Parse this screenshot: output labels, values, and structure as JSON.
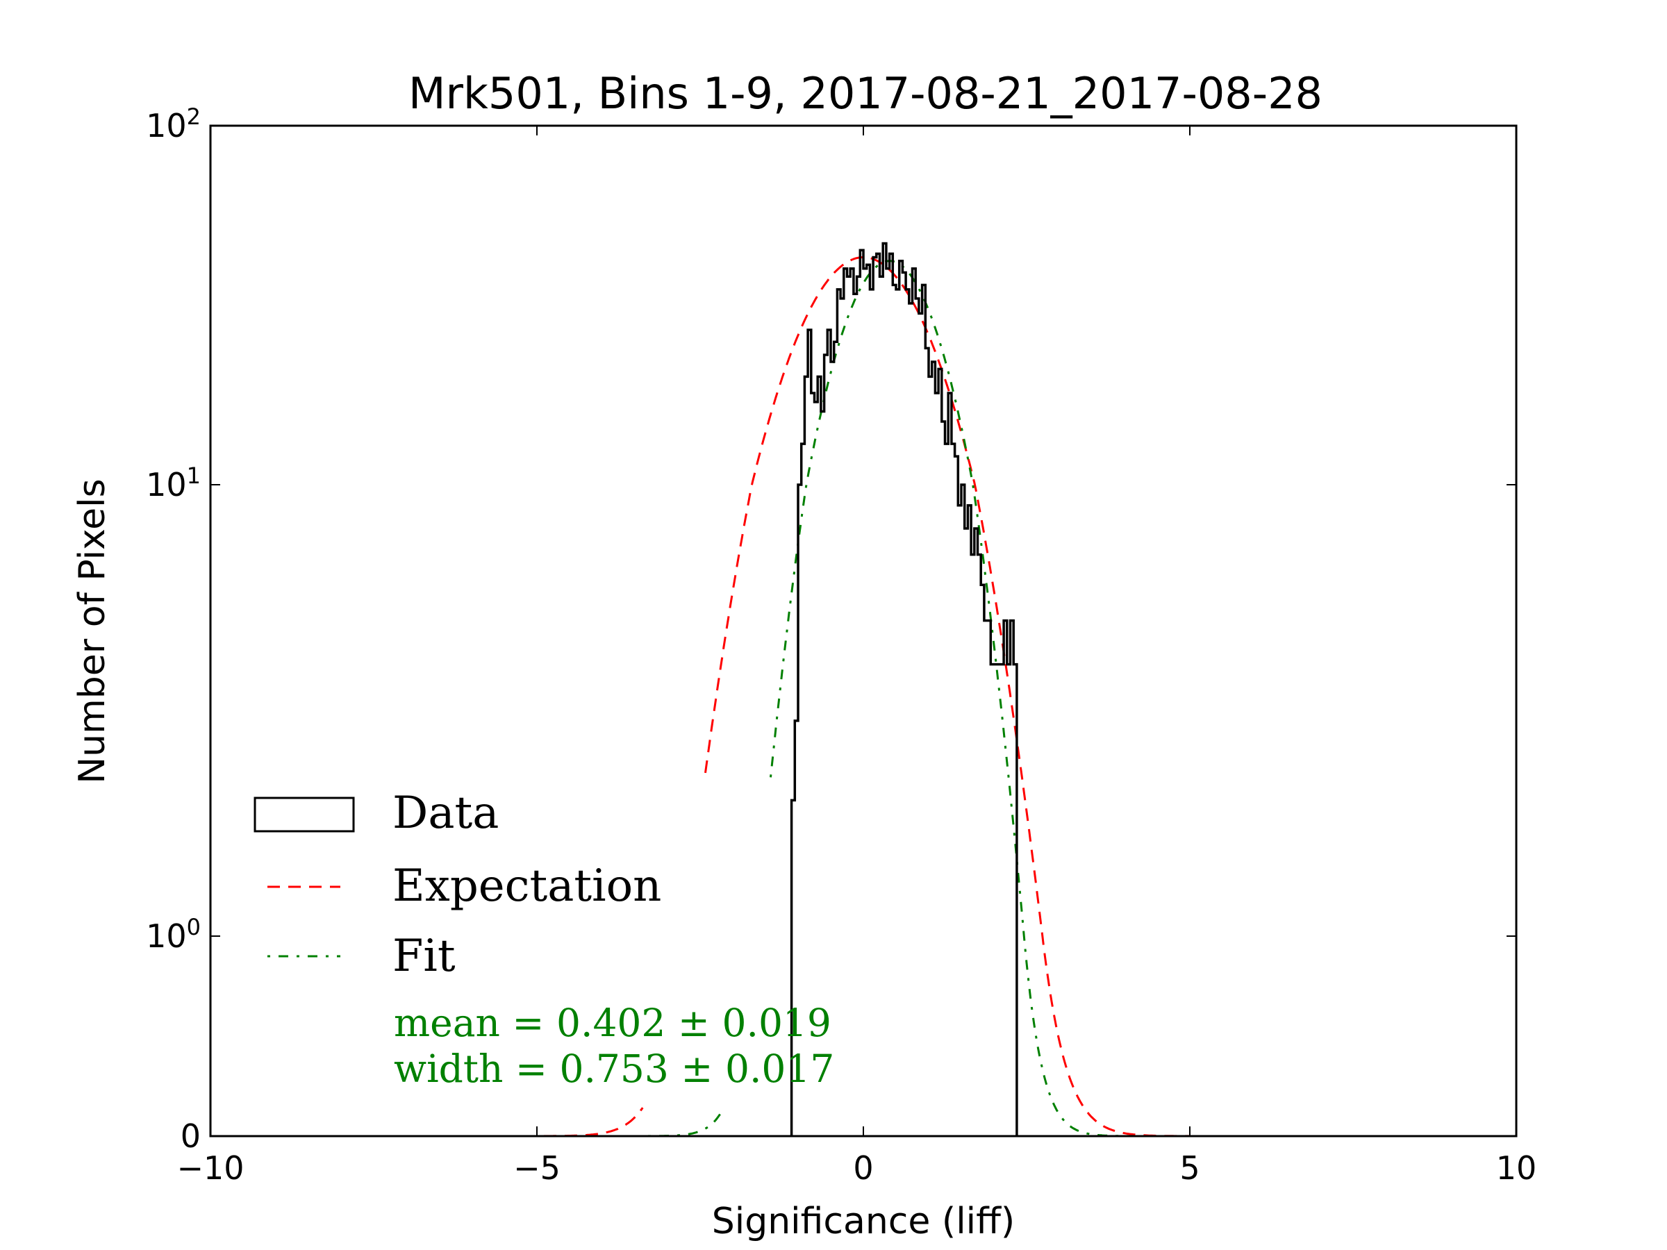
{
  "chart_data": {
    "type": "histogram",
    "title": "Mrk501, Bins 1-9, 2017-08-21_2017-08-28",
    "xlabel": "Significance (liff)",
    "ylabel": "Number of Pixels",
    "xlim": [
      -10,
      10
    ],
    "ylim": [
      0,
      100
    ],
    "yscale": "symlog",
    "xticks": [
      -10,
      -5,
      0,
      5,
      10
    ],
    "xtick_labels": [
      "−10",
      "−5",
      "0",
      "5",
      "10"
    ],
    "yticks": [
      0,
      1,
      10,
      100
    ],
    "ytick_labels": [
      {
        "base": "0",
        "exp": ""
      },
      {
        "base": "10",
        "exp": "0"
      },
      {
        "base": "10",
        "exp": "1"
      },
      {
        "base": "10",
        "exp": "2"
      }
    ],
    "histogram": {
      "name": "Data",
      "color": "#000000",
      "bin_start": -1.1,
      "bin_width": 0.05,
      "counts": [
        2,
        3,
        10,
        13,
        20,
        27,
        18,
        17,
        20,
        16,
        23,
        27,
        22,
        25,
        35,
        33,
        40,
        38,
        40,
        34,
        38,
        45,
        40,
        41,
        35,
        43,
        44,
        38,
        47,
        40,
        44,
        36,
        35,
        42,
        39,
        35,
        32,
        40,
        33,
        30,
        36,
        24,
        20,
        22,
        18,
        21,
        15,
        13,
        18,
        13,
        12,
        9,
        10,
        8,
        9,
        7,
        8,
        7,
        6,
        5,
        5,
        4,
        4,
        4,
        4,
        5,
        4,
        5,
        4
      ]
    },
    "curves": [
      {
        "name": "Expectation",
        "color": "#ff0000",
        "style": "dashed",
        "mean": 0.0,
        "width": 1.0,
        "amplitude": 43
      },
      {
        "name": "Fit",
        "color": "#008000",
        "style": "dashdot",
        "mean": 0.402,
        "width": 0.753,
        "amplitude": 42
      }
    ],
    "legend": {
      "placement": "lower-left",
      "entries": [
        "Data",
        "Expectation",
        "Fit"
      ]
    },
    "annotations": [
      "mean = 0.402 ± 0.019",
      "width = 0.753 ± 0.017"
    ],
    "annotation_color": "#008000"
  }
}
